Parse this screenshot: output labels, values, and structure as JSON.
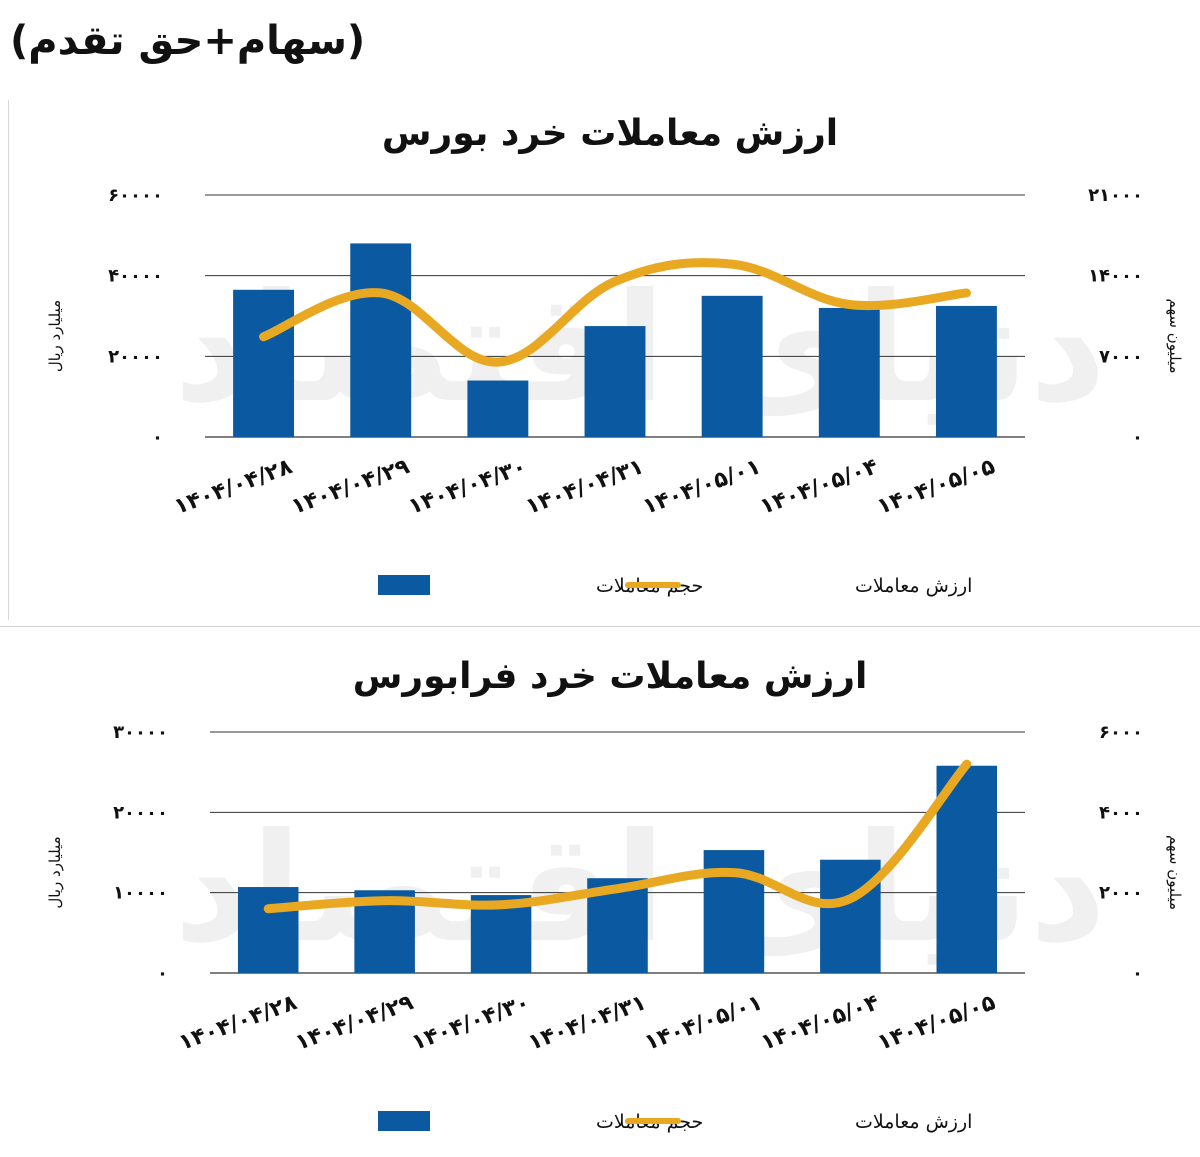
{
  "heading": "(سهام+حق تقدم)",
  "chart_data": [
    {
      "type": "bar",
      "title": "ارزش معاملات خرد بورس",
      "categories": [
        "۱۴۰۴/۰۴/۲۸",
        "۱۴۰۴/۰۴/۲۹",
        "۱۴۰۴/۰۴/۳۰",
        "۱۴۰۴/۰۴/۳۱",
        "۱۴۰۴/۰۵/۰۱",
        "۱۴۰۴/۰۵/۰۴",
        "۱۴۰۴/۰۵/۰۵"
      ],
      "ylabel_left": "میلیارد ریال",
      "ylabel_right": "میلیون سهم",
      "ylim_left": [
        0,
        60000
      ],
      "ylim_right": [
        0,
        21000
      ],
      "yticks_left": [
        "۰",
        "۲۰۰۰۰",
        "۴۰۰۰۰",
        "۶۰۰۰۰"
      ],
      "yticks_right": [
        "۰",
        "۷۰۰۰",
        "۱۴۰۰۰",
        "۲۱۰۰۰"
      ],
      "grid": true,
      "legend_placement": "bottom",
      "series": [
        {
          "name": "حجم معاملات",
          "type": "bar",
          "axis": "left",
          "color": "#0b5aa1",
          "values": [
            36500,
            48000,
            14000,
            27500,
            35000,
            32000,
            32500
          ]
        },
        {
          "name": "ارزش معاملات",
          "type": "line",
          "axis": "right",
          "color": "#e8a822",
          "values": [
            8700,
            12500,
            6500,
            13500,
            15000,
            11500,
            12500
          ]
        }
      ],
      "watermark": "دنیای اقتصاد"
    },
    {
      "type": "bar",
      "title": "ارزش معاملات خرد فرابورس",
      "categories": [
        "۱۴۰۴/۰۴/۲۸",
        "۱۴۰۴/۰۴/۲۹",
        "۱۴۰۴/۰۴/۳۰",
        "۱۴۰۴/۰۴/۳۱",
        "۱۴۰۴/۰۵/۰۱",
        "۱۴۰۴/۰۵/۰۴",
        "۱۴۰۴/۰۵/۰۵"
      ],
      "ylabel_left": "میلیارد ریال",
      "ylabel_right": "میلیون سهم",
      "ylim_left": [
        0,
        30000
      ],
      "ylim_right": [
        0,
        6000
      ],
      "yticks_left": [
        "۰",
        "۱۰۰۰۰",
        "۲۰۰۰۰",
        "۳۰۰۰۰"
      ],
      "yticks_right": [
        "۰",
        "۲۰۰۰",
        "۴۰۰۰",
        "۶۰۰۰"
      ],
      "grid": true,
      "legend_placement": "bottom",
      "series": [
        {
          "name": "حجم معاملات",
          "type": "bar",
          "axis": "left",
          "color": "#0b5aa1",
          "values": [
            10700,
            10300,
            9700,
            11800,
            15300,
            14100,
            25800
          ]
        },
        {
          "name": "ارزش معاملات",
          "type": "line",
          "axis": "right",
          "color": "#e8a822",
          "values": [
            1600,
            1800,
            1700,
            2100,
            2500,
            1850,
            5200
          ]
        }
      ],
      "watermark": "دنیای اقتصاد"
    }
  ]
}
